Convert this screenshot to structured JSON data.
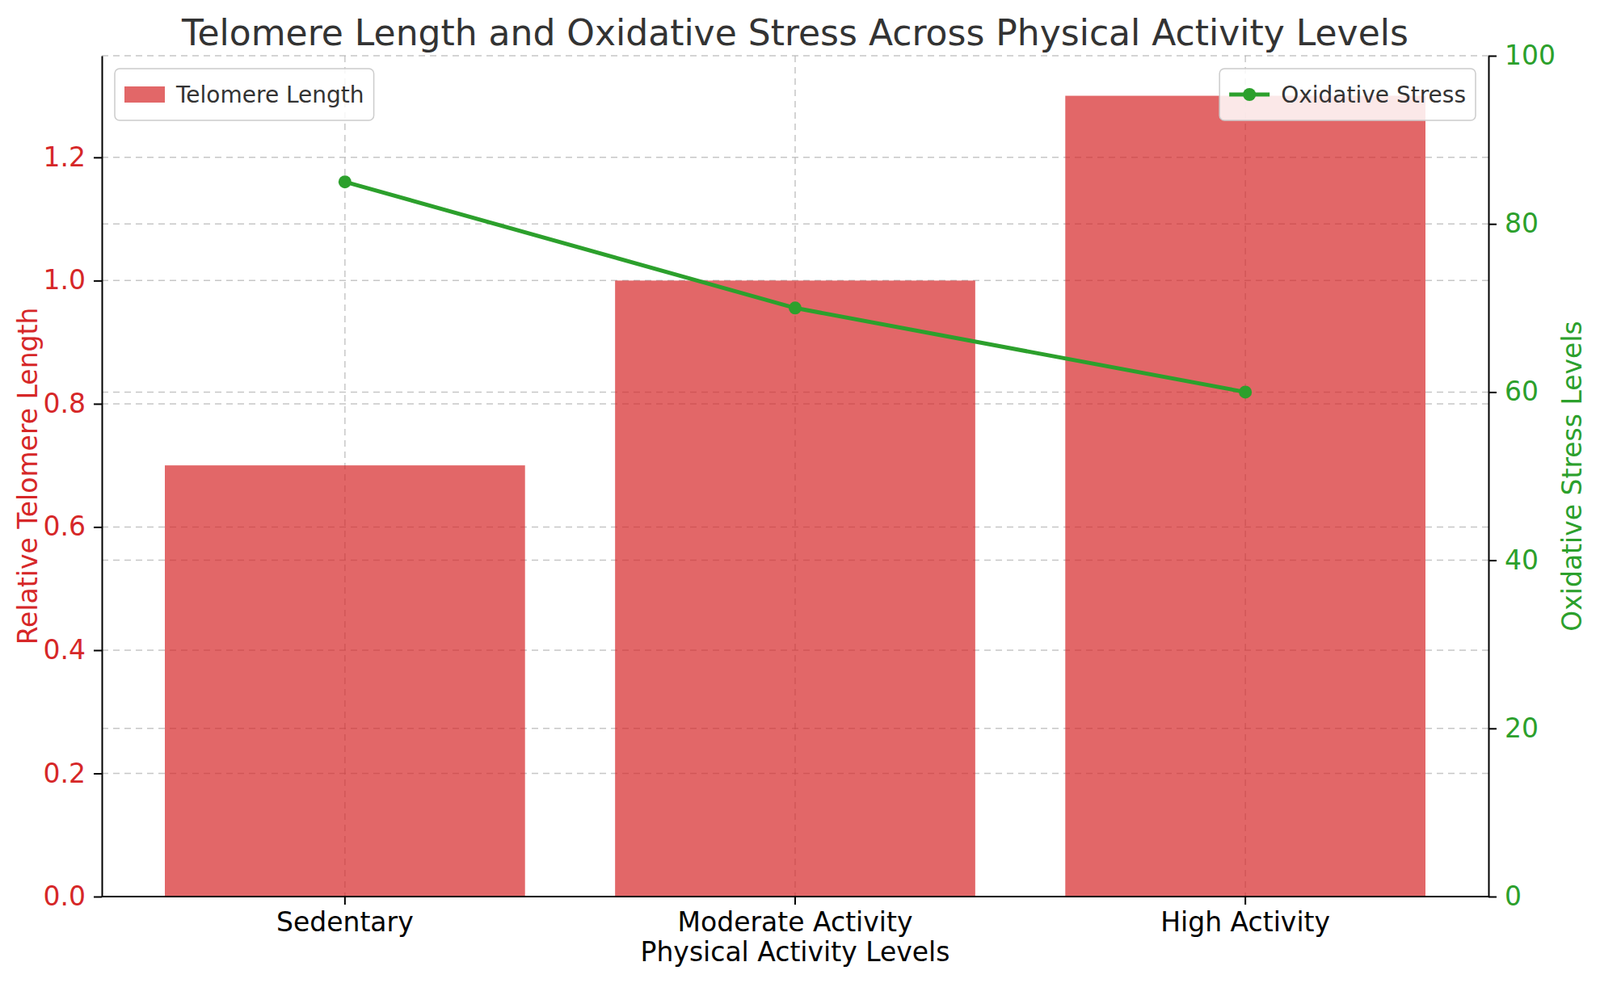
{
  "chart_data": {
    "type": "bar",
    "title": "Telomere Length and Oxidative Stress Across Physical Activity Levels",
    "x_label": "Physical Activity Levels",
    "y_label": "Relative Telomere Length",
    "y2_label": "Oxidative Stress Levels",
    "categories": [
      "Sedentary",
      "Moderate Activity",
      "High Activity"
    ],
    "series": [
      {
        "name": "Telomere Length",
        "type": "bar",
        "color": "#d62728",
        "values": [
          0.7,
          1.0,
          1.3
        ]
      },
      {
        "name": "Oxidative Stress",
        "type": "line",
        "color": "#2ca02c",
        "marker": "circle",
        "axis": "y2",
        "values": [
          85,
          70,
          60
        ]
      }
    ],
    "ylim": [
      0,
      1.365
    ],
    "yticks": [
      {
        "value": 0,
        "label": "0.0"
      },
      0.2,
      0.4,
      0.6,
      0.8,
      {
        "value": 1.0,
        "label": "1.0"
      },
      1.2
    ],
    "y2lim": [
      0,
      100
    ],
    "y2ticks": [
      0,
      20,
      40,
      60,
      80,
      100
    ],
    "grid": true,
    "legend": "upper left"
  }
}
